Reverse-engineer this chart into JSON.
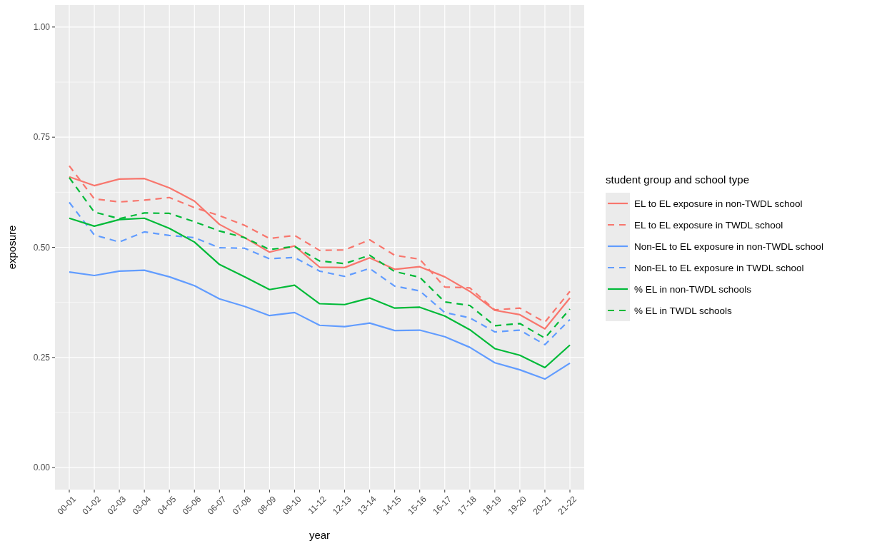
{
  "chart_data": {
    "type": "line",
    "xlabel": "year",
    "ylabel": "exposure",
    "legend_title": "student group and school type",
    "legend": "right",
    "grid": true,
    "ylim": [
      -0.05,
      1.05
    ],
    "yticks": [
      {
        "value": 0,
        "label": "0.00"
      },
      {
        "value": 0.25,
        "label": "0.25"
      },
      {
        "value": 0.5,
        "label": "0.50"
      },
      {
        "value": 0.75,
        "label": "0.75"
      },
      {
        "value": 1,
        "label": "1.00"
      }
    ],
    "categories": [
      "00-01",
      "01-02",
      "02-03",
      "03-04",
      "04-05",
      "05-06",
      "06-07",
      "07-08",
      "08-09",
      "09-10",
      "11-12",
      "12-13",
      "13-14",
      "14-15",
      "15-16",
      "16-17",
      "17-18",
      "18-19",
      "19-20",
      "20-21",
      "21-22"
    ],
    "series": [
      {
        "name": "EL to EL exposure in non-TWDL school",
        "color": "#f8766d",
        "line_style": "solid",
        "values": [
          0.66,
          0.64,
          0.655,
          0.656,
          0.635,
          0.605,
          0.552,
          0.522,
          0.489,
          0.503,
          0.455,
          0.454,
          0.476,
          0.45,
          0.456,
          0.433,
          0.4,
          0.357,
          0.347,
          0.315,
          0.385
        ]
      },
      {
        "name": "EL to EL exposure in TWDL school",
        "color": "#f8766d",
        "line_style": "dashed",
        "values": [
          0.685,
          0.61,
          0.603,
          0.607,
          0.613,
          0.59,
          0.572,
          0.55,
          0.52,
          0.527,
          0.493,
          0.494,
          0.517,
          0.482,
          0.473,
          0.41,
          0.408,
          0.358,
          0.362,
          0.33,
          0.4
        ]
      },
      {
        "name": "Non-EL to EL exposure in non-TWDL school",
        "color": "#619cff",
        "line_style": "solid",
        "values": [
          0.444,
          0.436,
          0.446,
          0.448,
          0.433,
          0.413,
          0.383,
          0.366,
          0.345,
          0.352,
          0.323,
          0.32,
          0.328,
          0.311,
          0.312,
          0.297,
          0.273,
          0.238,
          0.222,
          0.201,
          0.237
        ]
      },
      {
        "name": "Non-EL to EL exposure in TWDL school",
        "color": "#619cff",
        "line_style": "dashed",
        "values": [
          0.602,
          0.528,
          0.512,
          0.535,
          0.527,
          0.522,
          0.499,
          0.498,
          0.474,
          0.477,
          0.446,
          0.434,
          0.452,
          0.412,
          0.401,
          0.352,
          0.34,
          0.308,
          0.312,
          0.279,
          0.336
        ]
      },
      {
        "name": "% EL in non-TWDL schools",
        "color": "#00ba38",
        "line_style": "solid",
        "values": [
          0.566,
          0.548,
          0.563,
          0.566,
          0.543,
          0.512,
          0.461,
          0.433,
          0.404,
          0.414,
          0.372,
          0.37,
          0.385,
          0.362,
          0.364,
          0.344,
          0.313,
          0.27,
          0.255,
          0.227,
          0.278
        ]
      },
      {
        "name": "% EL in TWDL schools",
        "color": "#00ba38",
        "line_style": "dashed",
        "values": [
          0.658,
          0.58,
          0.565,
          0.578,
          0.577,
          0.558,
          0.537,
          0.522,
          0.495,
          0.502,
          0.469,
          0.463,
          0.482,
          0.445,
          0.432,
          0.376,
          0.368,
          0.322,
          0.327,
          0.294,
          0.36
        ]
      }
    ]
  }
}
